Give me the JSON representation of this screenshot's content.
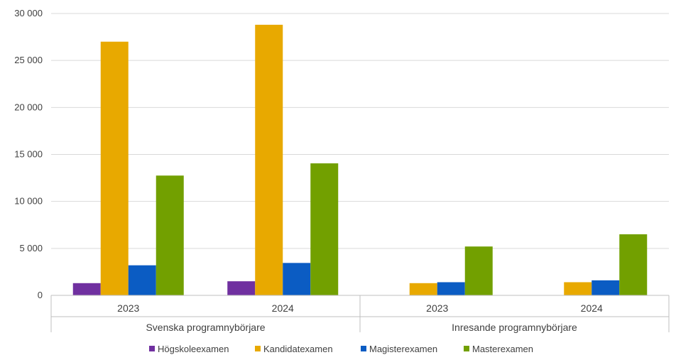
{
  "chart_data": {
    "type": "bar",
    "y_ticks": [
      "0",
      "5 000",
      "10 000",
      "15 000",
      "20 000",
      "25 000",
      "30 000"
    ],
    "ylim": [
      0,
      30000
    ],
    "groups": [
      {
        "label": "Svenska programnybörjare",
        "categories": [
          "2023",
          "2024"
        ]
      },
      {
        "label": "Inresande programnybörjare",
        "categories": [
          "2023",
          "2024"
        ]
      }
    ],
    "series": [
      {
        "name": "Högskoleexamen",
        "color": "#7030a0",
        "values": [
          1300,
          1500,
          0,
          0
        ]
      },
      {
        "name": "Kandidatexamen",
        "color": "#e8a900",
        "values": [
          27000,
          28800,
          1300,
          1400
        ]
      },
      {
        "name": "Magisterexamen",
        "color": "#0b5cc3",
        "values": [
          3200,
          3450,
          1400,
          1600
        ]
      },
      {
        "name": "Masterexamen",
        "color": "#72a000",
        "values": [
          12750,
          14050,
          5200,
          6500
        ]
      }
    ],
    "grid": true,
    "legend_position": "bottom"
  }
}
